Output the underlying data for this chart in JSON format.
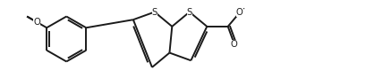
{
  "bg_color": "#ffffff",
  "line_color": "#1a1a1a",
  "line_width": 1.4,
  "font_size": 7.2,
  "fig_width": 4.1,
  "fig_height": 0.88,
  "dpi": 100,
  "xlim": [
    0.0,
    5.8
  ],
  "ylim": [
    0.0,
    1.0
  ]
}
